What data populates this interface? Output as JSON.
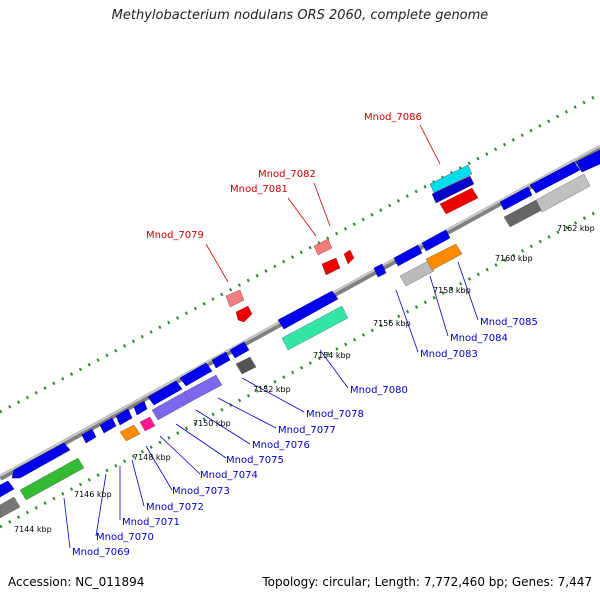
{
  "title": "Methylobacterium nodulans ORS 2060, complete genome",
  "footer": {
    "accession": "Accession: NC_011894",
    "topology": "Topology: circular; Length: 7,772,460 bp; Genes: 7,447"
  },
  "scale_ticks": [
    "7144 kbp",
    "7146 kbp",
    "7148 kbp",
    "7150 kbp",
    "7152 kbp",
    "7154 kbp",
    "7156 kbp",
    "7158 kbp",
    "7160 kbp",
    "7162 kbp"
  ],
  "top_labels": [
    "Mnod_7079",
    "Mnod_7081",
    "Mnod_7082",
    "Mnod_7086"
  ],
  "bottom_labels": [
    "Mnod_7069",
    "Mnod_7070",
    "Mnod_7071",
    "Mnod_7072",
    "Mnod_7073",
    "Mnod_7074",
    "Mnod_7075",
    "Mnod_7076",
    "Mnod_7077",
    "Mnod_7078",
    "Mnod_7080",
    "Mnod_7083",
    "Mnod_7084",
    "Mnod_7085"
  ],
  "colors": {
    "backbone": "#999999",
    "gene": "#0000ee",
    "top_label": "#cc0000",
    "bottom_label": "#0000cc",
    "tick_dot": "#2a8a2a"
  }
}
